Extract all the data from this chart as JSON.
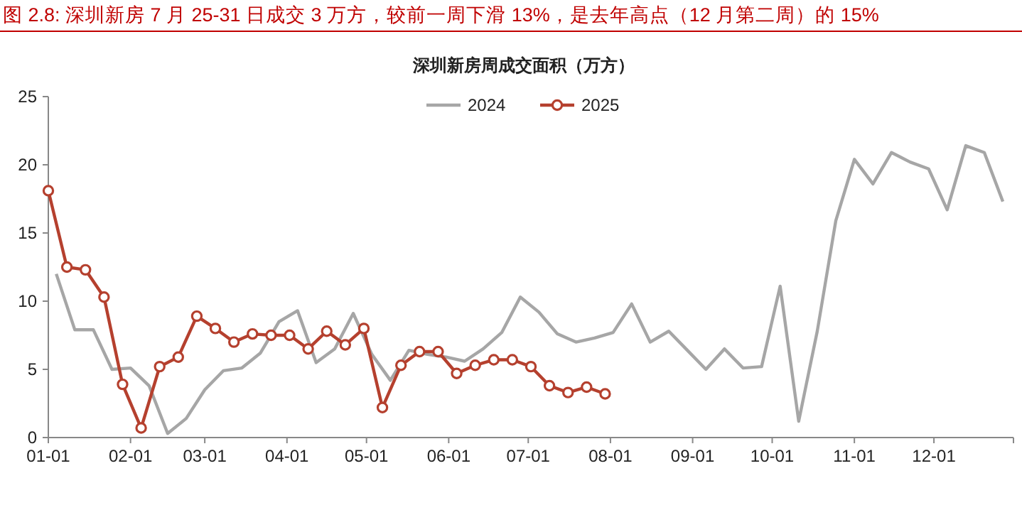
{
  "chart_data": {
    "type": "line",
    "title": "图 2.8:  深圳新房 7 月 25-31 日成交 3 万方，较前一周下滑 13%，是去年高点（12 月第二周）的 15%",
    "subtitle": "深圳新房周成交面积（万方）",
    "xlim": [
      "--01-01",
      "--12-31"
    ],
    "xticks": [
      {
        "value": "--01-01",
        "label": "01-01"
      },
      {
        "value": "--02-01",
        "label": "02-01"
      },
      {
        "value": "--03-01",
        "label": "03-01"
      },
      {
        "value": "--04-01",
        "label": "04-01"
      },
      {
        "value": "--05-01",
        "label": "05-01"
      },
      {
        "value": "--06-01",
        "label": "06-01"
      },
      {
        "value": "--07-01",
        "label": "07-01"
      },
      {
        "value": "--08-01",
        "label": "08-01"
      },
      {
        "value": "--09-01",
        "label": "09-01"
      },
      {
        "value": "--10-01",
        "label": "10-01"
      },
      {
        "value": "--11-01",
        "label": "11-01"
      },
      {
        "value": "--12-01",
        "label": "12-01"
      },
      {
        "value": "--12-31",
        "label": null
      }
    ],
    "ylim": [
      0,
      25
    ],
    "yticks": [
      0,
      5,
      10,
      15,
      20,
      25
    ],
    "grid": false,
    "legend": "top",
    "line_style": "solid",
    "series": [
      {
        "name": "2024",
        "color": "#a6a6a6",
        "marker": "none",
        "x": [
          "--01-04",
          "--01-11",
          "--01-18",
          "--01-25",
          "--02-01",
          "--02-08",
          "--02-15",
          "--02-22",
          "--03-01",
          "--03-08",
          "--03-15",
          "--03-22",
          "--03-29",
          "--04-05",
          "--04-12",
          "--04-19",
          "--04-26",
          "--05-03",
          "--05-10",
          "--05-17",
          "--05-24",
          "--05-31",
          "--06-07",
          "--06-14",
          "--06-21",
          "--06-28",
          "--07-05",
          "--07-12",
          "--07-19",
          "--07-26",
          "--08-02",
          "--08-09",
          "--08-16",
          "--08-23",
          "--08-30",
          "--09-06",
          "--09-13",
          "--09-20",
          "--09-27",
          "--10-04",
          "--10-11",
          "--10-18",
          "--10-25",
          "--11-01",
          "--11-08",
          "--11-15",
          "--11-22",
          "--11-29",
          "--12-06",
          "--12-13",
          "--12-20",
          "--12-27"
        ],
        "values": [
          12.0,
          7.9,
          7.9,
          5.0,
          5.1,
          3.8,
          0.3,
          1.4,
          3.5,
          4.9,
          5.1,
          6.2,
          8.5,
          9.3,
          5.5,
          6.5,
          9.1,
          6.1,
          4.2,
          6.4,
          6.1,
          5.9,
          5.6,
          6.5,
          7.7,
          10.3,
          9.2,
          7.6,
          7.0,
          7.3,
          7.7,
          9.8,
          7.0,
          7.8,
          6.4,
          5.0,
          6.5,
          5.1,
          5.2,
          11.1,
          1.2,
          7.8,
          15.9,
          20.4,
          18.6,
          20.9,
          20.2,
          19.7,
          16.7,
          21.4,
          20.9,
          17.3
        ]
      },
      {
        "name": "2025",
        "color": "#b5402e",
        "marker": "circle",
        "x": [
          "--01-01",
          "--01-08",
          "--01-15",
          "--01-22",
          "--01-29",
          "--02-05",
          "--02-12",
          "--02-19",
          "--02-26",
          "--03-05",
          "--03-12",
          "--03-19",
          "--03-26",
          "--04-02",
          "--04-09",
          "--04-16",
          "--04-23",
          "--04-30",
          "--05-07",
          "--05-14",
          "--05-21",
          "--05-28",
          "--06-04",
          "--06-11",
          "--06-18",
          "--06-25",
          "--07-02",
          "--07-09",
          "--07-16",
          "--07-23",
          "--07-30"
        ],
        "values": [
          18.1,
          12.5,
          12.3,
          10.3,
          3.9,
          0.7,
          5.2,
          5.9,
          8.9,
          8.0,
          7.0,
          7.6,
          7.5,
          7.5,
          6.5,
          7.8,
          6.8,
          8.0,
          2.2,
          5.3,
          6.3,
          6.3,
          4.7,
          5.3,
          5.7,
          5.7,
          5.2,
          3.8,
          3.3,
          3.7,
          3.2
        ]
      }
    ]
  }
}
